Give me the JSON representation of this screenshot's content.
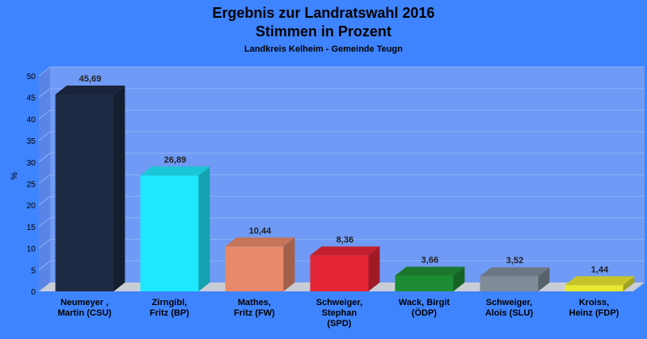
{
  "chart_data": {
    "type": "bar",
    "title_line1": "Ergebnis zur Landratswahl 2016",
    "title_line2": "Stimmen in Prozent",
    "subtitle": "Landkreis Kelheim - Gemeinde Teugn",
    "ylabel": "%",
    "xlabel": "",
    "ylim": [
      0,
      50
    ],
    "yticks": [
      "0",
      "5",
      "10",
      "15",
      "20",
      "25",
      "30",
      "35",
      "40",
      "45",
      "50"
    ],
    "grid": "horizontal",
    "categories": [
      [
        "Neumeyer ,",
        "Martin (CSU)"
      ],
      [
        "Zirngibl,",
        "Fritz (BP)"
      ],
      [
        "Mathes,",
        "Fritz (FW)"
      ],
      [
        "Schweiger,",
        "Stephan",
        "(SPD)"
      ],
      [
        "Wack, Birgit",
        "(ÖDP)"
      ],
      [
        "Schweiger,",
        "Alois (SLU)"
      ],
      [
        "Kroiss,",
        "Heinz (FDP)"
      ]
    ],
    "values": [
      45.69,
      26.89,
      10.44,
      8.36,
      3.66,
      3.52,
      1.44
    ],
    "value_labels": [
      "45,69",
      "26,89",
      "10,44",
      "8,36",
      "3,66",
      "3,52",
      "1,44"
    ],
    "colors": [
      "#1e2a44",
      "#1ee8fb",
      "#e8896a",
      "#e52636",
      "#1e8c34",
      "#7f8c98",
      "#e8e830"
    ],
    "background_color": "#3f84ff",
    "plot_color": "#6f9af5"
  }
}
